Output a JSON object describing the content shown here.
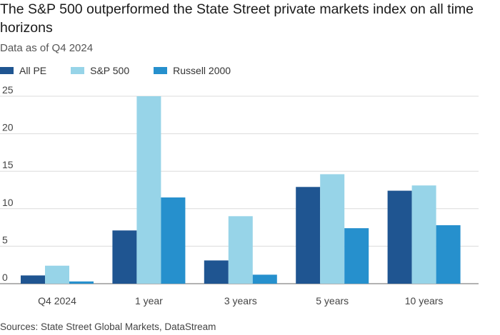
{
  "header": {
    "title": "The S&P 500 outperformed the State Street private markets index on all time horizons",
    "subtitle": "Data as of Q4 2024"
  },
  "footer": {
    "source": "Sources: State Street Global Markets, DataStream"
  },
  "chart_data": {
    "type": "bar",
    "categories": [
      "Q4 2024",
      "1 year",
      "3 years",
      "5 years",
      "10 years"
    ],
    "series": [
      {
        "name": "All PE",
        "color": "#1f5591",
        "values": [
          1.1,
          7.1,
          3.1,
          12.9,
          12.4
        ]
      },
      {
        "name": "S&P 500",
        "color": "#97d4e8",
        "values": [
          2.4,
          25.0,
          9.0,
          14.6,
          13.1
        ]
      },
      {
        "name": "Russell 2000",
        "color": "#2690cd",
        "values": [
          0.3,
          11.5,
          1.2,
          7.4,
          7.8
        ]
      }
    ],
    "ylim": [
      0,
      25
    ],
    "yticks": [
      0,
      5,
      10,
      15,
      20,
      25
    ],
    "grid": true,
    "legend_position": "top-left"
  }
}
